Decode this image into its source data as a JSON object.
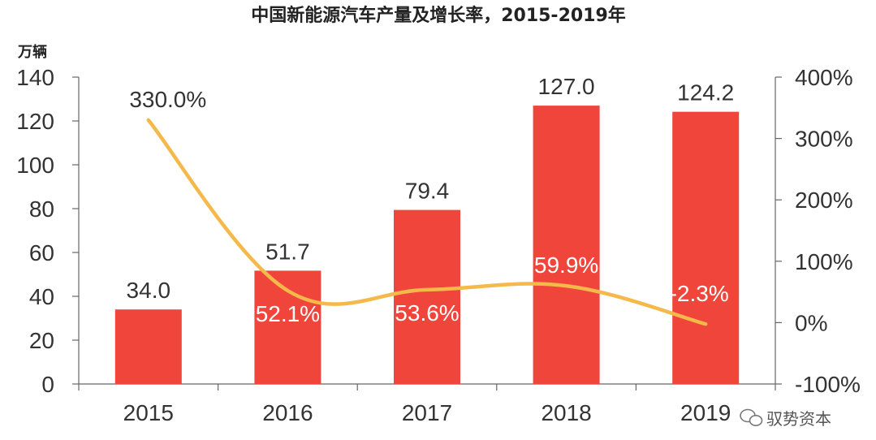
{
  "chart_data": {
    "type": "bar",
    "title": "中国新能源汽车产量及增长率，2015-2019年",
    "y_unit_label": "万辆",
    "categories": [
      "2015",
      "2016",
      "2017",
      "2018",
      "2019"
    ],
    "series": [
      {
        "type": "bar",
        "values": [
          34.0,
          51.7,
          79.4,
          127.0,
          124.2
        ],
        "value_labels": [
          "34.0",
          "51.7",
          "79.4",
          "127.0",
          "124.2"
        ],
        "color": "#f0453a",
        "axis": "left"
      },
      {
        "type": "line",
        "values": [
          330.0,
          52.1,
          53.6,
          59.9,
          -2.3
        ],
        "value_labels": [
          "330.0%",
          "52.1%",
          "53.6%",
          "59.9%",
          "-2.3%"
        ],
        "color": "#f4b94a",
        "axis": "right"
      }
    ],
    "y_left": {
      "min": 0,
      "max": 140,
      "ticks": [
        "0",
        "20",
        "40",
        "60",
        "80",
        "100",
        "120",
        "140"
      ]
    },
    "y_right": {
      "min": -100,
      "max": 400,
      "ticks": [
        "-100%",
        "0%",
        "100%",
        "200%",
        "300%",
        "400%"
      ]
    },
    "grid": false,
    "legend": "none"
  },
  "watermark": {
    "text": "驭势资本",
    "icon": "wechat-icon"
  }
}
